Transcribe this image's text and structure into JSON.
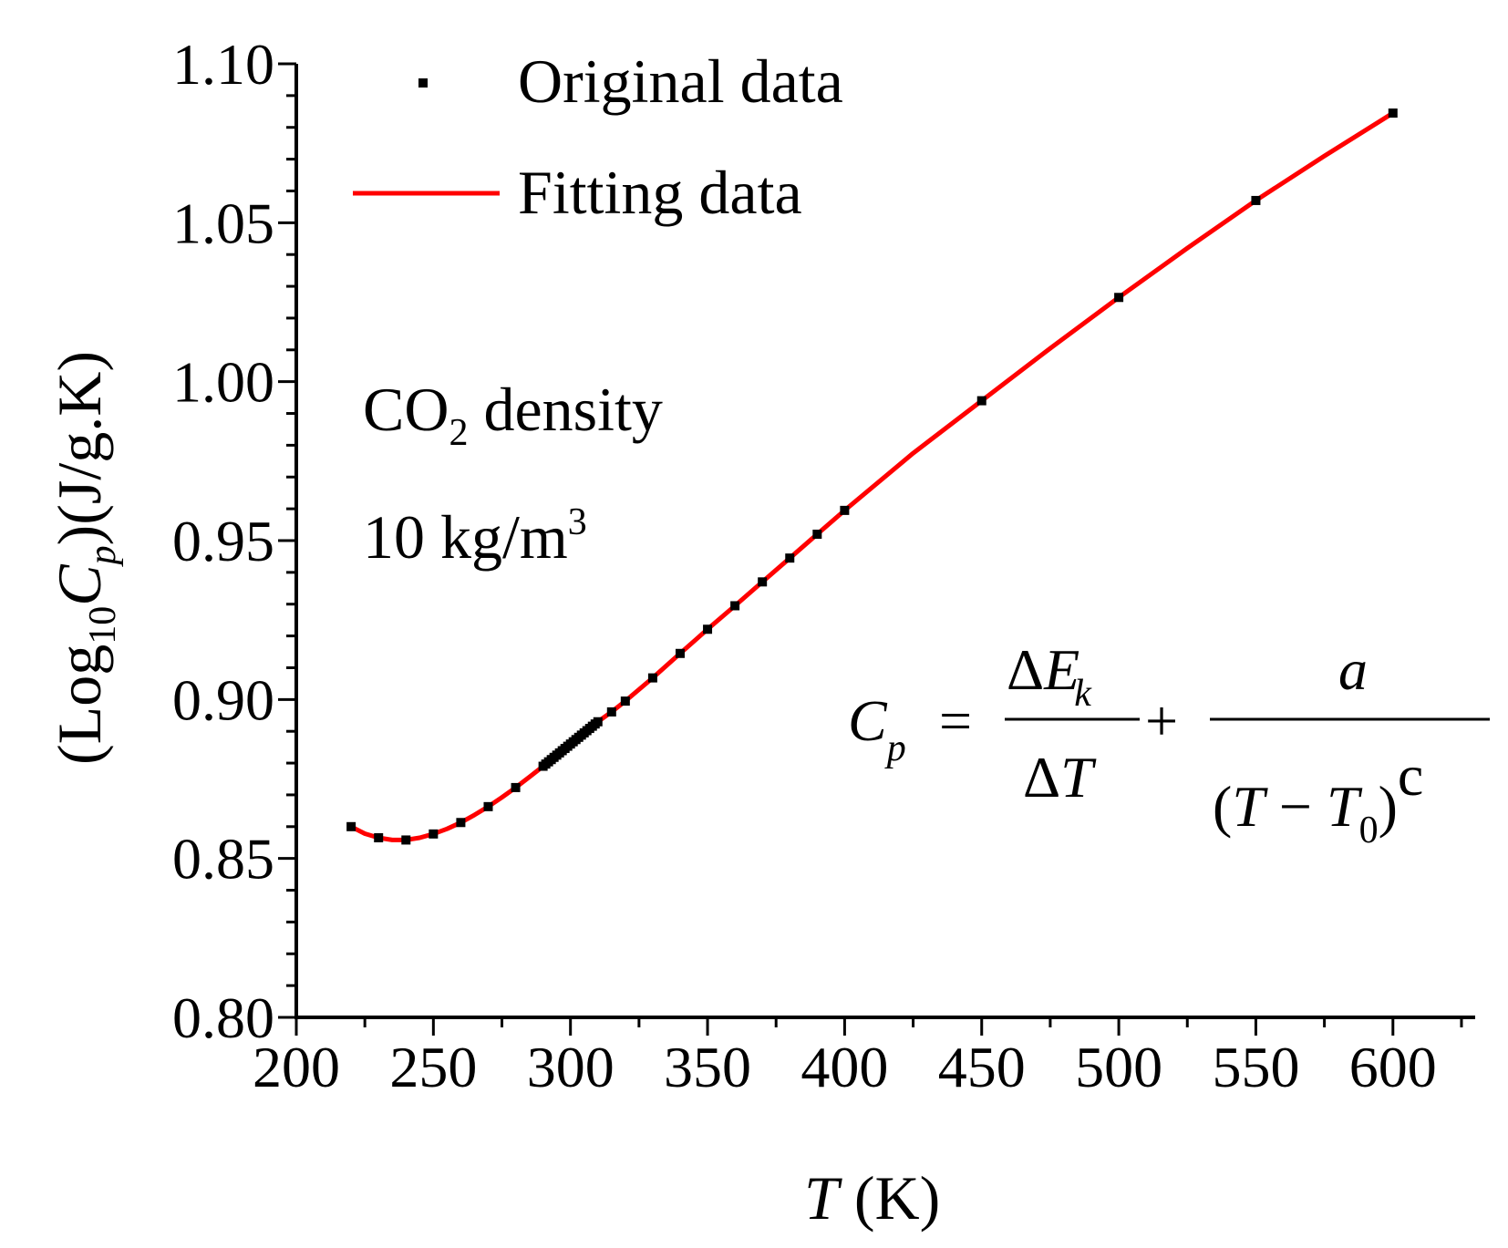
{
  "chart_data": {
    "type": "line",
    "title": "",
    "xlabel_var": "T",
    "xlabel_unit": " (K)",
    "ylabel_pre": "(Log",
    "ylabel_sub": "10",
    "ylabel_var": "C",
    "ylabel_var_sub": "p",
    "ylabel_unit": ")(J/g.K)",
    "xlim": [
      200,
      630
    ],
    "ylim": [
      0.8,
      1.1
    ],
    "x_ticks": [
      200,
      250,
      300,
      350,
      400,
      450,
      500,
      550,
      600
    ],
    "y_ticks": [
      0.8,
      0.85,
      0.9,
      0.95,
      1.0,
      1.05,
      1.1
    ],
    "x_tick_labels": [
      "200",
      "250",
      "300",
      "350",
      "400",
      "450",
      "500",
      "550",
      "600"
    ],
    "y_tick_labels": [
      "0.80",
      "0.85",
      "0.90",
      "0.95",
      "1.00",
      "1.05",
      "1.10"
    ],
    "legend": {
      "position": "top-left",
      "original_label": "Original data",
      "fitting_label": "Fitting data"
    },
    "series": [
      {
        "name": "Original data",
        "style": "square-marker",
        "color": "#000000",
        "x": [
          220,
          230,
          240,
          250,
          260,
          270,
          280,
          290,
          291,
          292,
          293,
          294,
          295,
          296,
          297,
          298,
          299,
          300,
          301,
          302,
          303,
          304,
          305,
          306,
          307,
          308,
          309,
          310,
          315,
          320,
          330,
          340,
          350,
          360,
          370,
          380,
          390,
          400,
          450,
          500,
          550,
          600
        ],
        "y": [
          0.86,
          0.8565,
          0.8558,
          0.8577,
          0.8613,
          0.8663,
          0.8723,
          0.879,
          0.8797,
          0.8804,
          0.8811,
          0.8818,
          0.8825,
          0.8832,
          0.8839,
          0.8846,
          0.8853,
          0.886,
          0.8867,
          0.8874,
          0.8881,
          0.8888,
          0.8895,
          0.8902,
          0.8909,
          0.8916,
          0.8923,
          0.893,
          0.8961,
          0.8995,
          0.9068,
          0.9145,
          0.9221,
          0.9295,
          0.937,
          0.9445,
          0.952,
          0.9595,
          0.994,
          1.0265,
          1.057,
          1.0845
        ]
      },
      {
        "name": "Fitting data",
        "style": "line",
        "color": "#ff0000",
        "x": [
          220,
          225,
          230,
          235,
          240,
          245,
          250,
          255,
          260,
          265,
          270,
          275,
          280,
          285,
          290,
          295,
          300,
          305,
          310,
          315,
          320,
          330,
          340,
          350,
          360,
          370,
          380,
          390,
          400,
          425,
          450,
          475,
          500,
          525,
          550,
          575,
          600
        ],
        "y": [
          0.86,
          0.8578,
          0.8565,
          0.8558,
          0.8558,
          0.8565,
          0.8577,
          0.8593,
          0.8613,
          0.8637,
          0.8663,
          0.8692,
          0.8723,
          0.8756,
          0.879,
          0.8825,
          0.886,
          0.8895,
          0.893,
          0.8961,
          0.8995,
          0.9068,
          0.9145,
          0.9221,
          0.9295,
          0.937,
          0.9445,
          0.952,
          0.9595,
          0.9775,
          0.994,
          1.0105,
          1.0265,
          1.042,
          1.057,
          1.071,
          1.0845
        ]
      }
    ],
    "annotation": {
      "line1_pre": "CO",
      "line1_sub": "2",
      "line1_post": " density",
      "line2_pre": "10  kg/m",
      "line2_sup": "3"
    },
    "equation": {
      "lhs_var": "C",
      "lhs_sub": "p",
      "equals": "=",
      "frac1_num_delta": "Δ",
      "frac1_num_var": "E",
      "frac1_num_sub": "k",
      "frac1_den_delta": "Δ",
      "frac1_den_var": "T",
      "plus": "+",
      "frac2_num": "a",
      "frac2_den_open": "(",
      "frac2_den_var1": "T",
      "frac2_den_minus": " − ",
      "frac2_den_var2": "T",
      "frac2_den_sub": "0",
      "frac2_den_close": ")",
      "frac2_den_exp": "c"
    }
  }
}
